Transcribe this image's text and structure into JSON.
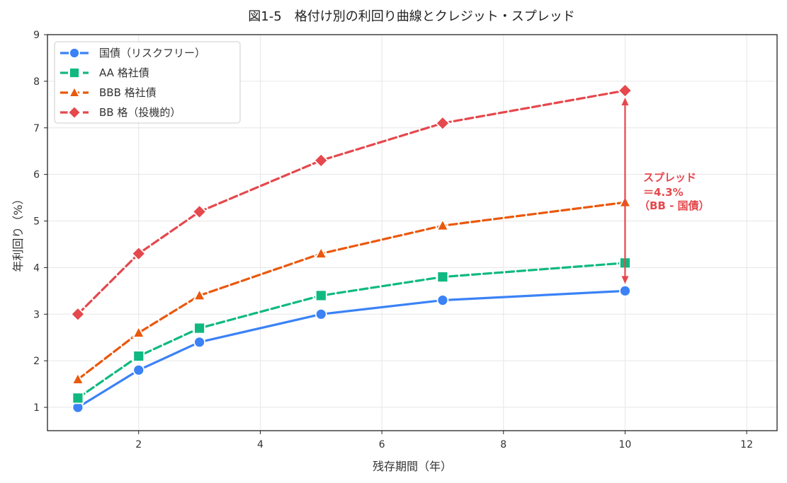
{
  "chart_data": {
    "type": "line",
    "title": "図1-5　格付け別の利回り曲線とクレジット・スプレッド",
    "xlabel": "残存期間（年）",
    "ylabel": "年利回り（%）",
    "xlim": [
      0.5,
      12.5
    ],
    "ylim": [
      0.5,
      9
    ],
    "xticks": [
      2,
      4,
      6,
      8,
      10,
      12
    ],
    "yticks": [
      1,
      2,
      3,
      4,
      5,
      6,
      7,
      8,
      9
    ],
    "grid": true,
    "legend_position": "top-left",
    "x": [
      1,
      2,
      3,
      5,
      7,
      10
    ],
    "series": [
      {
        "name": "国債（リスクフリー）",
        "values": [
          1.0,
          1.8,
          2.4,
          3.0,
          3.3,
          3.5
        ],
        "color": "#3b82f6",
        "marker": "circle",
        "dash": "solid"
      },
      {
        "name": "AA 格社債",
        "values": [
          1.2,
          2.1,
          2.7,
          3.4,
          3.8,
          4.1
        ],
        "color": "#10b981",
        "marker": "square",
        "dash": "dashed"
      },
      {
        "name": "BBB 格社債",
        "values": [
          1.6,
          2.6,
          3.4,
          4.3,
          4.9,
          5.4
        ],
        "color": "#ea580c",
        "marker": "triangle",
        "dash": "dashed"
      },
      {
        "name": "BB 格（投機的）",
        "values": [
          3.0,
          4.3,
          5.2,
          6.3,
          7.1,
          7.8
        ],
        "color": "#e5484d",
        "marker": "diamond",
        "dash": "dashed"
      }
    ],
    "annotation": {
      "lines": [
        "スプレッド",
        "＝4.3%",
        "（BB - 国債）"
      ],
      "color": "#e5484d",
      "x": 10,
      "y_from": 3.5,
      "y_to": 7.8
    }
  }
}
